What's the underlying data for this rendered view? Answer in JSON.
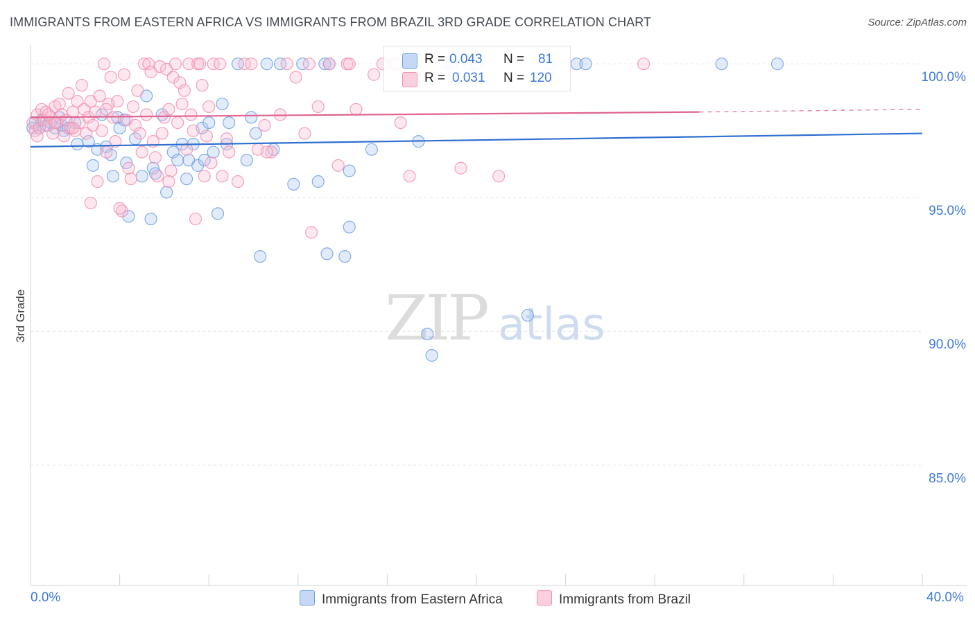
{
  "chart_data": {
    "type": "scatter",
    "title": "IMMIGRANTS FROM EASTERN AFRICA VS IMMIGRANTS FROM BRAZIL 3RD GRADE CORRELATION CHART",
    "source": "Source: ZipAtlas.com",
    "xlabel": "",
    "ylabel": "3rd Grade",
    "xlim": [
      0,
      40
    ],
    "ylim": [
      80.5,
      100.6
    ],
    "x_tick_labels": [
      "0.0%",
      "40.0%"
    ],
    "y_ticks": [
      {
        "value": 100,
        "label": "100.0%"
      },
      {
        "value": 95,
        "label": "95.0%"
      },
      {
        "value": 90,
        "label": "90.0%"
      },
      {
        "value": 85,
        "label": "85.0%"
      }
    ],
    "grid": true,
    "watermark": "ZIPatlas",
    "legend": {
      "position": "top-center",
      "r_label": "R =",
      "n_label": "N =",
      "entries": [
        {
          "r": "0.043",
          "n": "81"
        },
        {
          "r": "0.031",
          "n": "120"
        }
      ]
    },
    "series": [
      {
        "name": "Immigrants from Eastern Africa",
        "color": "#6fa0e8",
        "line_color": "#2f6fd0",
        "trend": {
          "x": [
            0,
            40
          ],
          "y": [
            96.9,
            97.4
          ]
        },
        "points": [
          [
            0.2,
            97.8
          ],
          [
            0.4,
            97.6
          ],
          [
            0.5,
            97.9
          ],
          [
            0.7,
            97.7
          ],
          [
            0.9,
            97.8
          ],
          [
            1.1,
            97.6
          ],
          [
            1.3,
            98.0
          ],
          [
            1.4,
            97.7
          ],
          [
            1.5,
            97.5
          ],
          [
            1.7,
            97.6
          ],
          [
            2.0,
            97.8
          ],
          [
            2.1,
            97.0
          ],
          [
            2.6,
            97.1
          ],
          [
            2.8,
            96.2
          ],
          [
            3.0,
            96.8
          ],
          [
            3.2,
            98.1
          ],
          [
            3.4,
            96.9
          ],
          [
            3.6,
            96.6
          ],
          [
            3.7,
            95.8
          ],
          [
            3.9,
            98.0
          ],
          [
            4.0,
            97.6
          ],
          [
            4.2,
            97.9
          ],
          [
            4.3,
            96.3
          ],
          [
            4.4,
            94.3
          ],
          [
            4.7,
            97.2
          ],
          [
            5.0,
            95.8
          ],
          [
            5.2,
            98.8
          ],
          [
            5.4,
            94.2
          ],
          [
            5.5,
            96.1
          ],
          [
            5.6,
            95.9
          ],
          [
            5.9,
            98.1
          ],
          [
            6.1,
            95.2
          ],
          [
            6.4,
            96.7
          ],
          [
            6.6,
            96.4
          ],
          [
            6.8,
            97.0
          ],
          [
            7.0,
            95.7
          ],
          [
            7.1,
            96.4
          ],
          [
            7.3,
            97.0
          ],
          [
            7.5,
            96.2
          ],
          [
            7.7,
            97.6
          ],
          [
            7.8,
            96.4
          ],
          [
            8.0,
            97.8
          ],
          [
            8.2,
            96.7
          ],
          [
            8.4,
            94.4
          ],
          [
            8.6,
            98.5
          ],
          [
            8.8,
            97.0
          ],
          [
            8.9,
            97.8
          ],
          [
            9.3,
            100.0
          ],
          [
            9.7,
            96.4
          ],
          [
            9.9,
            98.0
          ],
          [
            10.1,
            97.4
          ],
          [
            10.3,
            92.8
          ],
          [
            10.6,
            100.0
          ],
          [
            10.9,
            96.8
          ],
          [
            11.2,
            100.0
          ],
          [
            11.8,
            95.5
          ],
          [
            12.2,
            100.0
          ],
          [
            12.9,
            95.6
          ],
          [
            13.2,
            100.0
          ],
          [
            13.4,
            100.0
          ],
          [
            13.3,
            92.9
          ],
          [
            14.1,
            92.8
          ],
          [
            14.3,
            93.9
          ],
          [
            14.3,
            96.0
          ],
          [
            15.3,
            96.8
          ],
          [
            16.4,
            100.0
          ],
          [
            16.9,
            100.0
          ],
          [
            17.4,
            97.1
          ],
          [
            17.8,
            89.9
          ],
          [
            18.0,
            89.1
          ],
          [
            18.6,
            100.0
          ],
          [
            18.9,
            100.0
          ],
          [
            19.7,
            100.0
          ],
          [
            20.0,
            100.0
          ],
          [
            22.3,
            90.6
          ],
          [
            23.3,
            100.0
          ],
          [
            24.5,
            100.0
          ],
          [
            24.9,
            100.0
          ],
          [
            31.0,
            100.0
          ],
          [
            33.5,
            100.0
          ],
          [
            0.1,
            97.6
          ]
        ]
      },
      {
        "name": "Immigrants from Brazil",
        "color": "#f28fb0",
        "line_color": "#e0628f",
        "trend": {
          "x": [
            0,
            30
          ],
          "y": [
            98.0,
            98.2
          ]
        },
        "trend_dashed": {
          "x": [
            30,
            40
          ],
          "y": [
            98.2,
            98.3
          ]
        },
        "points": [
          [
            0.1,
            97.8
          ],
          [
            0.2,
            97.5
          ],
          [
            0.3,
            98.1
          ],
          [
            0.4,
            97.6
          ],
          [
            0.5,
            98.3
          ],
          [
            0.6,
            97.9
          ],
          [
            0.7,
            98.2
          ],
          [
            0.8,
            97.7
          ],
          [
            0.9,
            98.0
          ],
          [
            1.0,
            97.4
          ],
          [
            1.1,
            98.4
          ],
          [
            1.2,
            97.8
          ],
          [
            1.3,
            98.5
          ],
          [
            1.4,
            98.1
          ],
          [
            1.5,
            97.3
          ],
          [
            1.6,
            97.9
          ],
          [
            1.7,
            98.9
          ],
          [
            1.8,
            97.6
          ],
          [
            1.9,
            98.2
          ],
          [
            2.0,
            97.5
          ],
          [
            2.1,
            98.6
          ],
          [
            2.2,
            97.8
          ],
          [
            2.3,
            99.2
          ],
          [
            2.4,
            98.3
          ],
          [
            2.5,
            97.4
          ],
          [
            2.6,
            98.0
          ],
          [
            2.7,
            98.6
          ],
          [
            2.8,
            97.7
          ],
          [
            2.9,
            98.2
          ],
          [
            3.0,
            95.6
          ],
          [
            3.1,
            98.8
          ],
          [
            3.2,
            97.5
          ],
          [
            3.3,
            100.0
          ],
          [
            3.4,
            96.7
          ],
          [
            3.5,
            98.5
          ],
          [
            3.6,
            99.5
          ],
          [
            3.7,
            98.0
          ],
          [
            3.8,
            97.1
          ],
          [
            3.9,
            98.6
          ],
          [
            4.1,
            94.5
          ],
          [
            4.2,
            99.6
          ],
          [
            4.3,
            97.9
          ],
          [
            4.4,
            96.1
          ],
          [
            4.5,
            95.7
          ],
          [
            4.6,
            98.4
          ],
          [
            4.7,
            97.7
          ],
          [
            4.8,
            99.0
          ],
          [
            4.9,
            97.4
          ],
          [
            5.0,
            96.7
          ],
          [
            5.1,
            100.0
          ],
          [
            5.2,
            98.1
          ],
          [
            5.3,
            100.0
          ],
          [
            5.4,
            99.7
          ],
          [
            5.5,
            97.1
          ],
          [
            5.6,
            96.5
          ],
          [
            5.7,
            95.8
          ],
          [
            5.8,
            99.9
          ],
          [
            5.9,
            97.4
          ],
          [
            6.0,
            98.0
          ],
          [
            6.1,
            99.8
          ],
          [
            6.2,
            98.3
          ],
          [
            6.3,
            96.0
          ],
          [
            6.4,
            99.5
          ],
          [
            6.5,
            100.0
          ],
          [
            6.6,
            97.8
          ],
          [
            6.7,
            99.3
          ],
          [
            6.8,
            98.5
          ],
          [
            6.9,
            99.0
          ],
          [
            7.0,
            96.8
          ],
          [
            7.1,
            100.0
          ],
          [
            7.2,
            98.1
          ],
          [
            7.3,
            97.5
          ],
          [
            7.4,
            94.2
          ],
          [
            7.5,
            100.0
          ],
          [
            7.6,
            100.0
          ],
          [
            7.7,
            99.2
          ],
          [
            7.8,
            95.8
          ],
          [
            7.9,
            97.3
          ],
          [
            8.0,
            98.4
          ],
          [
            8.1,
            96.3
          ],
          [
            8.2,
            100.0
          ],
          [
            8.5,
            100.0
          ],
          [
            8.8,
            97.2
          ],
          [
            8.9,
            96.7
          ],
          [
            9.3,
            95.6
          ],
          [
            9.6,
            100.0
          ],
          [
            9.9,
            100.0
          ],
          [
            10.2,
            96.8
          ],
          [
            10.5,
            97.7
          ],
          [
            10.8,
            96.7
          ],
          [
            11.2,
            98.1
          ],
          [
            11.5,
            100.0
          ],
          [
            11.9,
            99.5
          ],
          [
            12.3,
            97.4
          ],
          [
            12.5,
            100.0
          ],
          [
            12.6,
            93.7
          ],
          [
            12.9,
            98.4
          ],
          [
            13.4,
            100.0
          ],
          [
            13.8,
            96.2
          ],
          [
            14.2,
            100.0
          ],
          [
            14.3,
            100.0
          ],
          [
            14.6,
            98.3
          ],
          [
            15.4,
            99.6
          ],
          [
            16.3,
            100.0
          ],
          [
            16.6,
            97.8
          ],
          [
            17.0,
            95.8
          ],
          [
            19.3,
            96.1
          ],
          [
            21.0,
            95.8
          ],
          [
            0.3,
            97.3
          ],
          [
            2.7,
            94.8
          ],
          [
            1.1,
            97.8
          ],
          [
            0.8,
            98.1
          ],
          [
            4.0,
            94.6
          ],
          [
            27.5,
            100.0
          ],
          [
            15.8,
            100.0
          ],
          [
            8.6,
            95.8
          ],
          [
            6.2,
            95.6
          ],
          [
            10.6,
            96.7
          ],
          [
            3.4,
            98.3
          ],
          [
            1.9,
            97.6
          ]
        ]
      }
    ]
  },
  "bottom_legend": [
    "Immigrants from Eastern Africa",
    "Immigrants from Brazil"
  ]
}
